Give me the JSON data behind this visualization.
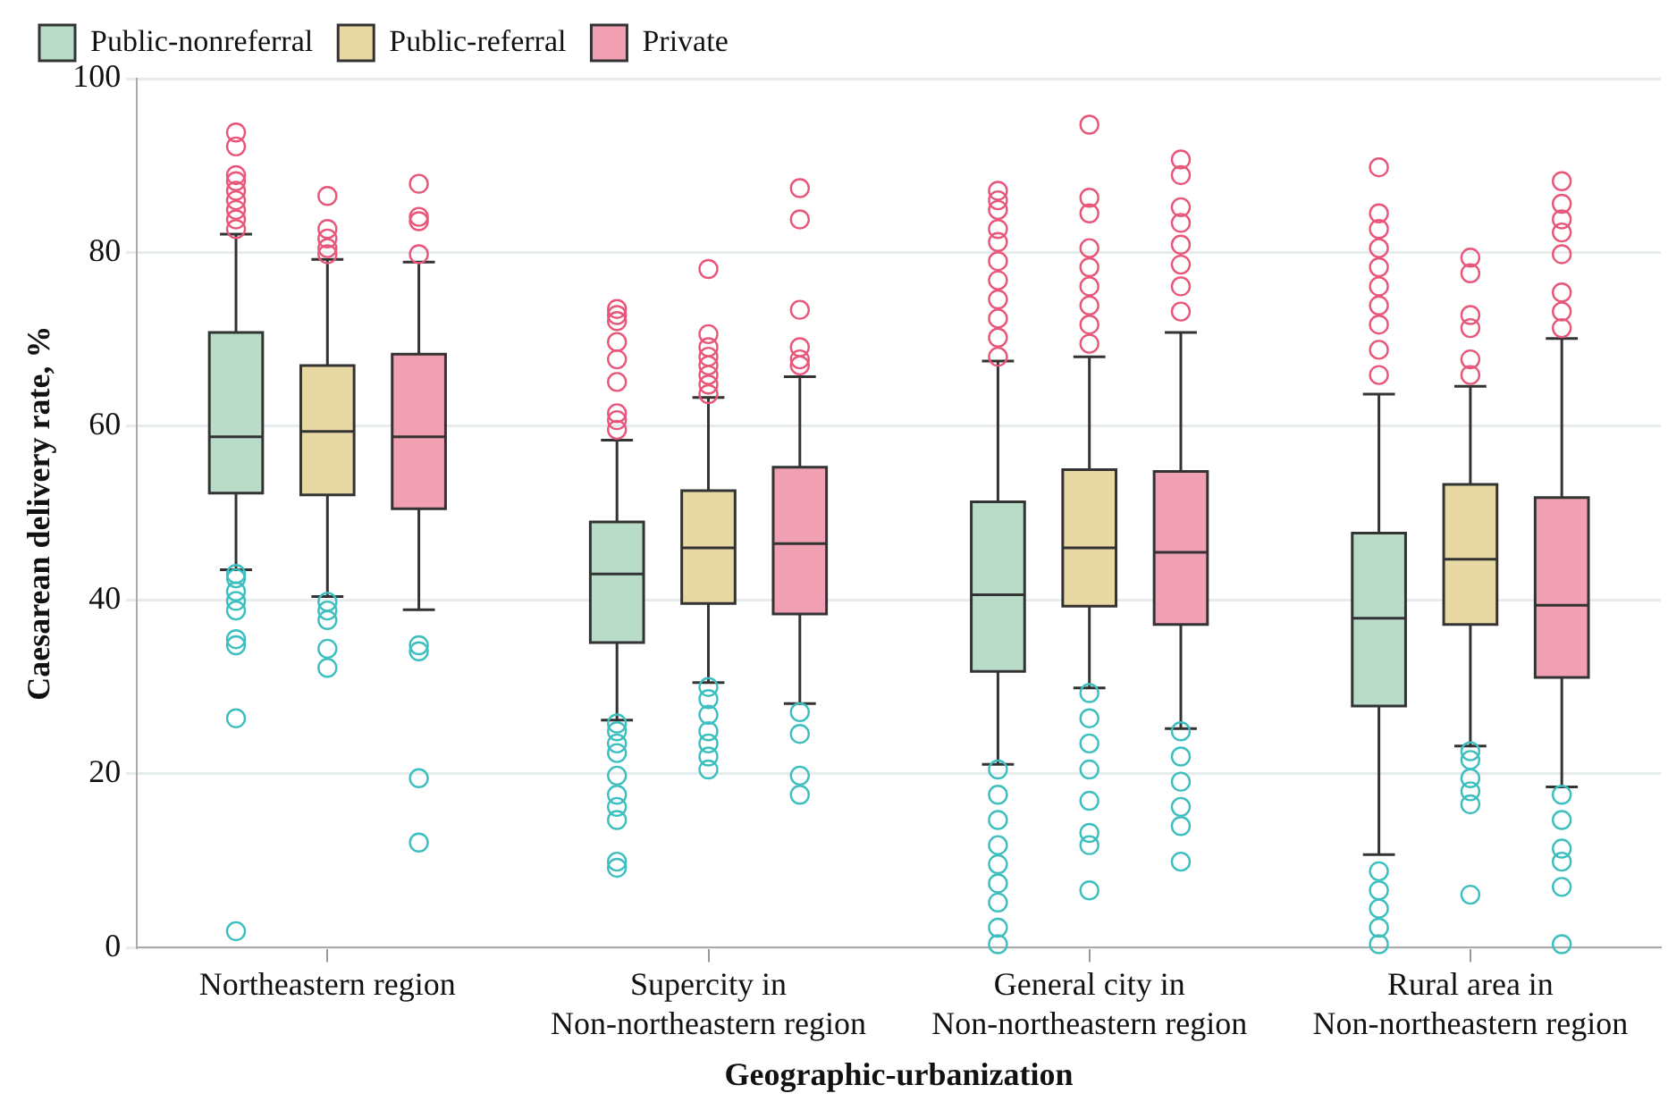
{
  "chart_data": {
    "type": "box",
    "xlabel": "Geographic-urbanization",
    "ylabel": "Caesarean delivery rate, %",
    "categories": [
      "Northeastern region",
      "Supercity in\nNon-northeastern region",
      "General city in\nNon-northeastern region",
      "Rural area in\nNon-northeastern region"
    ],
    "ylim": [
      0,
      100
    ],
    "yticks": [
      0,
      20,
      40,
      60,
      80,
      100
    ],
    "grid": "y",
    "legend": "top left",
    "marker": "circle",
    "series": [
      {
        "name": "Public-nonreferral",
        "color": "#b9dcc8",
        "boxes": [
          {
            "low": 43.5,
            "q1": 52.3,
            "median": 58.8,
            "q3": 70.8,
            "high": 82.1
          },
          {
            "low": 26.2,
            "q1": 35.1,
            "median": 43.0,
            "q3": 49.0,
            "high": 58.4
          },
          {
            "low": 21.1,
            "q1": 31.8,
            "median": 40.6,
            "q3": 51.3,
            "high": 67.5
          },
          {
            "low": 10.7,
            "q1": 27.8,
            "median": 37.9,
            "q3": 47.7,
            "high": 63.7
          }
        ]
      },
      {
        "type": "scatter",
        "color": "#e8577a",
        "x": [
          "Northeastern region",
          "Northeastern region",
          "Northeastern region",
          "Northeastern region",
          "Northeastern region",
          "Northeastern region",
          "Northeastern region",
          "Northeastern region",
          "Northeastern region",
          "Supercity in\nNon-northeastern region",
          "Supercity in\nNon-northeastern region",
          "Supercity in\nNon-northeastern region",
          "Supercity in\nNon-northeastern region",
          "Supercity in\nNon-northeastern region",
          "Supercity in\nNon-northeastern region",
          "Supercity in\nNon-northeastern region",
          "Supercity in\nNon-northeastern region",
          "Supercity in\nNon-northeastern region",
          "General city in\nNon-northeastern region",
          "General city in\nNon-northeastern region",
          "General city in\nNon-northeastern region",
          "General city in\nNon-northeastern region",
          "General city in\nNon-northeastern region",
          "General city in\nNon-northeastern region",
          "General city in\nNon-northeastern region",
          "General city in\nNon-northeastern region",
          "General city in\nNon-northeastern region",
          "General city in\nNon-northeastern region",
          "General city in\nNon-northeastern region",
          "Rural area in\nNon-northeastern region",
          "Rural area in\nNon-northeastern region",
          "Rural area in\nNon-northeastern region",
          "Rural area in\nNon-northeastern region",
          "Rural area in\nNon-northeastern region",
          "Rural area in\nNon-northeastern region",
          "Rural area in\nNon-northeastern region",
          "Rural area in\nNon-northeastern region",
          "Rural area in\nNon-northeastern region",
          "Rural area in\nNon-northeastern region"
        ],
        "values": [
          93.8,
          92.2,
          88.9,
          88.2,
          87.1,
          86.0,
          84.9,
          83.8,
          82.7,
          73.5,
          72.8,
          72.1,
          69.7,
          67.7,
          65.1,
          61.5,
          60.7,
          59.6,
          87.1,
          86.0,
          84.9,
          82.7,
          81.2,
          79.0,
          76.8,
          74.6,
          72.4,
          70.2,
          68.0,
          89.8,
          84.5,
          82.7,
          80.5,
          78.3,
          76.1,
          73.9,
          71.7,
          68.8,
          65.9
        ]
      },
      {
        "type": "scatter",
        "color": "#3dbfbf",
        "x": [
          "Northeastern region",
          "Northeastern region",
          "Northeastern region",
          "Northeastern region",
          "Northeastern region",
          "Northeastern region",
          "Northeastern region",
          "Northeastern region",
          "Northeastern region",
          "Supercity in\nNon-northeastern region",
          "Supercity in\nNon-northeastern region",
          "Supercity in\nNon-northeastern region",
          "Supercity in\nNon-northeastern region",
          "Supercity in\nNon-northeastern region",
          "Supercity in\nNon-northeastern region",
          "Supercity in\nNon-northeastern region",
          "Supercity in\nNon-northeastern region",
          "Supercity in\nNon-northeastern region",
          "Supercity in\nNon-northeastern region",
          "General city in\nNon-northeastern region",
          "General city in\nNon-northeastern region",
          "General city in\nNon-northeastern region",
          "General city in\nNon-northeastern region",
          "General city in\nNon-northeastern region",
          "General city in\nNon-northeastern region",
          "General city in\nNon-northeastern region",
          "General city in\nNon-northeastern region",
          "General city in\nNon-northeastern region",
          "Rural area in\nNon-northeastern region",
          "Rural area in\nNon-northeastern region",
          "Rural area in\nNon-northeastern region",
          "Rural area in\nNon-northeastern region",
          "Rural area in\nNon-northeastern region"
        ],
        "values": [
          43.0,
          42.5,
          41.0,
          39.9,
          38.8,
          35.5,
          34.8,
          26.4,
          1.9,
          25.8,
          24.9,
          23.5,
          22.4,
          19.8,
          17.6,
          16.2,
          14.7,
          9.9,
          9.2,
          20.5,
          17.6,
          14.7,
          11.8,
          9.6,
          7.4,
          5.2,
          2.3,
          0.4,
          8.8,
          6.6,
          4.5,
          2.3,
          0.4
        ]
      },
      {
        "name": "Public-referral",
        "color": "#e8d8a4",
        "boxes": [
          {
            "low": 40.4,
            "q1": 52.1,
            "median": 59.4,
            "q3": 67.0,
            "high": 79.2
          },
          {
            "low": 30.5,
            "q1": 39.6,
            "median": 46.0,
            "q3": 52.6,
            "high": 63.3
          },
          {
            "low": 29.9,
            "q1": 39.3,
            "median": 46.0,
            "q3": 55.0,
            "high": 68.0
          },
          {
            "low": 23.2,
            "q1": 37.2,
            "median": 44.7,
            "q3": 53.3,
            "high": 64.6
          }
        ]
      },
      {
        "type": "scatter",
        "color": "#e8577a",
        "x": [
          "Northeastern region",
          "Northeastern region",
          "Northeastern region",
          "Northeastern region",
          "Northeastern region",
          "Supercity in\nNon-northeastern region",
          "Supercity in\nNon-northeastern region",
          "Supercity in\nNon-northeastern region",
          "Supercity in\nNon-northeastern region",
          "Supercity in\nNon-northeastern region",
          "Supercity in\nNon-northeastern region",
          "Supercity in\nNon-northeastern region",
          "Supercity in\nNon-northeastern region",
          "General city in\nNon-northeastern region",
          "General city in\nNon-northeastern region",
          "General city in\nNon-northeastern region",
          "General city in\nNon-northeastern region",
          "General city in\nNon-northeastern region",
          "General city in\nNon-northeastern region",
          "General city in\nNon-northeastern region",
          "General city in\nNon-northeastern region",
          "General city in\nNon-northeastern region",
          "Rural area in\nNon-northeastern region",
          "Rural area in\nNon-northeastern region",
          "Rural area in\nNon-northeastern region",
          "Rural area in\nNon-northeastern region",
          "Rural area in\nNon-northeastern region",
          "Rural area in\nNon-northeastern region"
        ],
        "values": [
          86.5,
          82.7,
          81.6,
          80.5,
          79.8,
          78.1,
          70.6,
          69.1,
          68.0,
          67.0,
          65.9,
          64.8,
          63.7,
          94.7,
          86.3,
          84.5,
          80.5,
          78.3,
          76.1,
          73.9,
          71.7,
          69.5,
          79.4,
          77.6,
          72.8,
          71.3,
          67.7,
          65.9
        ]
      },
      {
        "type": "scatter",
        "color": "#3dbfbf",
        "x": [
          "Northeastern region",
          "Northeastern region",
          "Northeastern region",
          "Northeastern region",
          "Northeastern region",
          "Supercity in\nNon-northeastern region",
          "Supercity in\nNon-northeastern region",
          "Supercity in\nNon-northeastern region",
          "Supercity in\nNon-northeastern region",
          "Supercity in\nNon-northeastern region",
          "Supercity in\nNon-northeastern region",
          "Supercity in\nNon-northeastern region",
          "General city in\nNon-northeastern region",
          "General city in\nNon-northeastern region",
          "General city in\nNon-northeastern region",
          "General city in\nNon-northeastern region",
          "General city in\nNon-northeastern region",
          "General city in\nNon-northeastern region",
          "General city in\nNon-northeastern region",
          "General city in\nNon-northeastern region",
          "Rural area in\nNon-northeastern region",
          "Rural area in\nNon-northeastern region",
          "Rural area in\nNon-northeastern region",
          "Rural area in\nNon-northeastern region",
          "Rural area in\nNon-northeastern region",
          "Rural area in\nNon-northeastern region"
        ],
        "values": [
          39.8,
          38.8,
          37.7,
          34.4,
          32.2,
          30.0,
          28.6,
          26.8,
          24.9,
          23.5,
          22.0,
          20.5,
          29.3,
          26.4,
          23.5,
          20.5,
          16.9,
          13.2,
          11.8,
          6.6,
          22.6,
          21.6,
          19.5,
          18.0,
          16.5,
          6.1
        ]
      },
      {
        "name": "Private",
        "color": "#f0a0b2",
        "boxes": [
          {
            "low": 38.9,
            "q1": 50.5,
            "median": 58.8,
            "q3": 68.3,
            "high": 78.9
          },
          {
            "low": 28.1,
            "q1": 38.4,
            "median": 46.5,
            "q3": 55.3,
            "high": 65.7
          },
          {
            "low": 25.2,
            "q1": 37.2,
            "median": 45.5,
            "q3": 54.8,
            "high": 70.8
          },
          {
            "low": 18.5,
            "q1": 31.1,
            "median": 39.4,
            "q3": 51.8,
            "high": 70.1
          }
        ]
      },
      {
        "type": "scatter",
        "color": "#e8577a",
        "x": [
          "Northeastern region",
          "Northeastern region",
          "Northeastern region",
          "Northeastern region",
          "Supercity in\nNon-northeastern region",
          "Supercity in\nNon-northeastern region",
          "Supercity in\nNon-northeastern region",
          "Supercity in\nNon-northeastern region",
          "Supercity in\nNon-northeastern region",
          "Supercity in\nNon-northeastern region",
          "General city in\nNon-northeastern region",
          "General city in\nNon-northeastern region",
          "General city in\nNon-northeastern region",
          "General city in\nNon-northeastern region",
          "General city in\nNon-northeastern region",
          "General city in\nNon-northeastern region",
          "General city in\nNon-northeastern region",
          "General city in\nNon-northeastern region",
          "Rural area in\nNon-northeastern region",
          "Rural area in\nNon-northeastern region",
          "Rural area in\nNon-northeastern region",
          "Rural area in\nNon-northeastern region",
          "Rural area in\nNon-northeastern region",
          "Rural area in\nNon-northeastern region",
          "Rural area in\nNon-northeastern region",
          "Rural area in\nNon-northeastern region"
        ],
        "values": [
          87.9,
          84.1,
          83.6,
          79.8,
          87.4,
          83.8,
          73.4,
          69.1,
          67.7,
          67.0,
          90.7,
          88.9,
          85.2,
          83.4,
          80.9,
          78.6,
          76.1,
          73.2,
          88.2,
          85.6,
          83.8,
          82.3,
          79.8,
          75.4,
          73.2,
          71.3
        ]
      },
      {
        "type": "scatter",
        "color": "#3dbfbf",
        "x": [
          "Northeastern region",
          "Northeastern region",
          "Northeastern region",
          "Northeastern region",
          "Supercity in\nNon-northeastern region",
          "Supercity in\nNon-northeastern region",
          "Supercity in\nNon-northeastern region",
          "Supercity in\nNon-northeastern region",
          "General city in\nNon-northeastern region",
          "General city in\nNon-northeastern region",
          "General city in\nNon-northeastern region",
          "General city in\nNon-northeastern region",
          "General city in\nNon-northeastern region",
          "General city in\nNon-northeastern region",
          "Rural area in\nNon-northeastern region",
          "Rural area in\nNon-northeastern region",
          "Rural area in\nNon-northeastern region",
          "Rural area in\nNon-northeastern region",
          "Rural area in\nNon-northeastern region",
          "Rural area in\nNon-northeastern region"
        ],
        "values": [
          34.8,
          34.1,
          19.5,
          12.1,
          27.1,
          24.6,
          19.8,
          17.6,
          24.9,
          22.0,
          19.1,
          16.2,
          14.0,
          9.9,
          17.6,
          14.7,
          11.4,
          9.9,
          7.0,
          0.4
        ]
      }
    ]
  }
}
